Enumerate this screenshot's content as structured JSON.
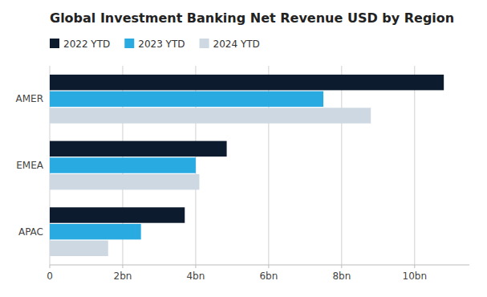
{
  "chart_data": {
    "type": "bar",
    "orientation": "horizontal",
    "title": "Global Investment Banking Net Revenue USD by Region",
    "categories": [
      "AMER",
      "EMEA",
      "APAC"
    ],
    "series": [
      {
        "name": "2022 YTD",
        "color": "#0d1b2e",
        "values": [
          10.8,
          4.85,
          3.7
        ]
      },
      {
        "name": "2023 YTD",
        "color": "#29abe2",
        "values": [
          7.5,
          4.0,
          2.5
        ]
      },
      {
        "name": "2024 YTD",
        "color": "#cdd8e3",
        "values": [
          8.8,
          4.1,
          1.6
        ]
      }
    ],
    "xlim": [
      0,
      11.5
    ],
    "xticks": [
      0,
      {
        "value": 2,
        "label": "2bn"
      },
      {
        "value": 4,
        "label": "4bn"
      },
      {
        "value": 6,
        "label": "6bn"
      },
      {
        "value": 8,
        "label": "8bn"
      },
      {
        "value": 10,
        "label": "10bn"
      }
    ],
    "grid": true,
    "legend": "top"
  }
}
